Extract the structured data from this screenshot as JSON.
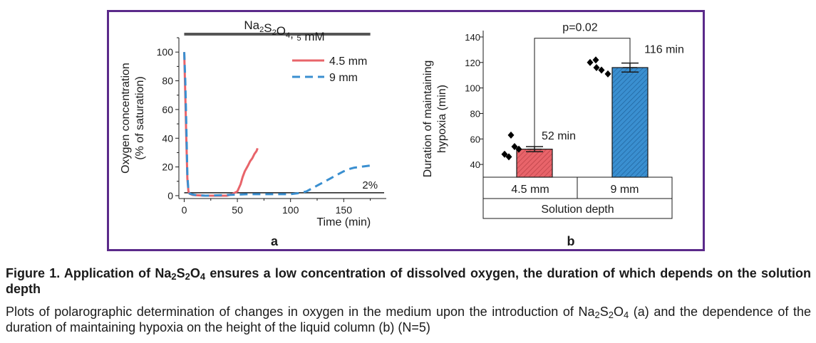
{
  "chart_data": [
    {
      "type": "line",
      "panel_label": "a",
      "xlabel": "Time (min)",
      "ylabel": "Oxygen concentration",
      "ylabel2": "(% of saturation)",
      "xlim": [
        -5,
        190
      ],
      "ylim": [
        -2,
        110
      ],
      "xticks": [
        0,
        50,
        100,
        150
      ],
      "yticks": [
        0,
        20,
        40,
        60,
        80,
        100
      ],
      "header_text": "Na2S2O4, 5 mM",
      "header_span": [
        0,
        175
      ],
      "threshold": {
        "value": 2,
        "label": "2%",
        "color": "#1a1a1a"
      },
      "legend_position": "top-right",
      "series": [
        {
          "name": "4.5 mm",
          "color": "#e8646a",
          "dash": "solid",
          "x": [
            0,
            1,
            2,
            3,
            4,
            5,
            6,
            8,
            12,
            20,
            30,
            40,
            45,
            50,
            53,
            55,
            57,
            60,
            62,
            64,
            66,
            68,
            69
          ],
          "y": [
            100,
            70,
            40,
            12,
            3,
            1.5,
            1,
            0.5,
            0.3,
            0,
            0,
            0,
            1,
            3,
            8,
            13,
            17,
            21,
            24,
            26,
            29,
            31,
            33
          ]
        },
        {
          "name": "9 mm",
          "color": "#3a8fd0",
          "dash": "dashed",
          "x": [
            0,
            1,
            2,
            3,
            4,
            5,
            7,
            10,
            20,
            40,
            60,
            80,
            100,
            110,
            115,
            120,
            125,
            130,
            135,
            140,
            145,
            150,
            155,
            160,
            165,
            170,
            175
          ],
          "y": [
            100,
            80,
            50,
            15,
            3,
            1.5,
            1,
            0.5,
            0,
            0.5,
            1,
            1,
            1,
            2,
            3,
            5,
            7,
            9,
            11,
            13,
            15,
            17,
            18.5,
            19.5,
            20,
            20.5,
            21
          ]
        }
      ]
    },
    {
      "type": "bar",
      "panel_label": "b",
      "ylabel": "Duration of maintaining",
      "ylabel2": "hypoxia (min)",
      "ylim": [
        30,
        145
      ],
      "yticks": [
        40,
        60,
        80,
        100,
        120,
        140
      ],
      "categories": [
        "4.5 mm",
        "9 mm"
      ],
      "xgroup_label": "Solution depth",
      "values": [
        52,
        116
      ],
      "errors": [
        2,
        3.5
      ],
      "value_labels": [
        "52 min",
        "116 min"
      ],
      "colors": [
        "#e8646a",
        "#3a8fd0"
      ],
      "points": [
        [
          48,
          46,
          54,
          63,
          52
        ],
        [
          120,
          122,
          116,
          114,
          111
        ]
      ],
      "significance": "p=0.02"
    }
  ],
  "caption": {
    "title_prefix": "Figure 1. Application of Na",
    "title_suffix": " ensures a low concentration of dissolved oxygen, the duration of which depends on the solution depth",
    "body_prefix": "Plots of polarographic determination of changes in oxygen in the medium upon the introduction of Na",
    "body_suffix": " (a) and the dependence of the duration of maintaining hypoxia on the height of the liquid column (b) (N=5)"
  },
  "colors": {
    "frame": "#5b2a8a",
    "axis": "#1a1a1a",
    "header_bar": "#555555"
  }
}
